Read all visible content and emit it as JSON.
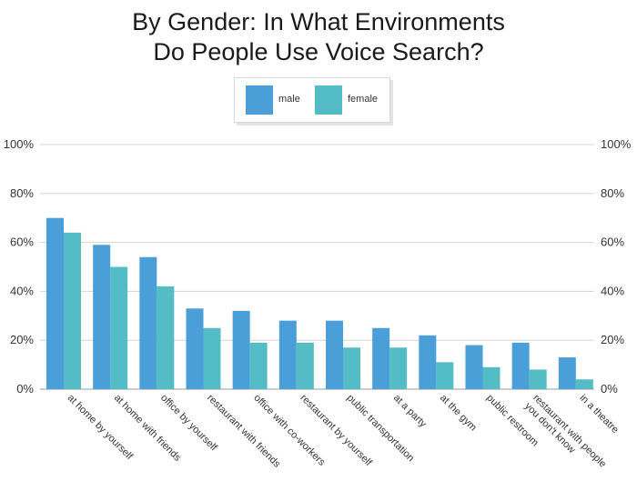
{
  "chart_data": {
    "type": "bar",
    "title_line1": "By Gender: In What Environments",
    "title_line2": "Do People Use Voice Search?",
    "categories": [
      [
        "at home by yourself"
      ],
      [
        "at home with friends"
      ],
      [
        "office by yourself"
      ],
      [
        "restaurant with friends"
      ],
      [
        "office with co-workers"
      ],
      [
        "restaurant by yourself"
      ],
      [
        "public transportation"
      ],
      [
        "at a party"
      ],
      [
        "at the gym"
      ],
      [
        "public restroom"
      ],
      [
        "restaurant with people",
        "you don't know"
      ],
      [
        "in a theatre"
      ]
    ],
    "series": [
      {
        "name": "male",
        "color": "#4a9fd9",
        "values": [
          70,
          59,
          54,
          33,
          32,
          28,
          28,
          25,
          22,
          18,
          19,
          13
        ]
      },
      {
        "name": "female",
        "color": "#53bcc5",
        "values": [
          64,
          50,
          42,
          25,
          19,
          19,
          17,
          17,
          11,
          9,
          8,
          4
        ]
      }
    ],
    "ylim": [
      0,
      100
    ],
    "yticks": [
      "0%",
      "20%",
      "40%",
      "60%",
      "80%",
      "100%"
    ],
    "ytick_values": [
      0,
      20,
      40,
      60,
      80,
      100
    ],
    "grid": true,
    "legend_position": "top-center"
  }
}
